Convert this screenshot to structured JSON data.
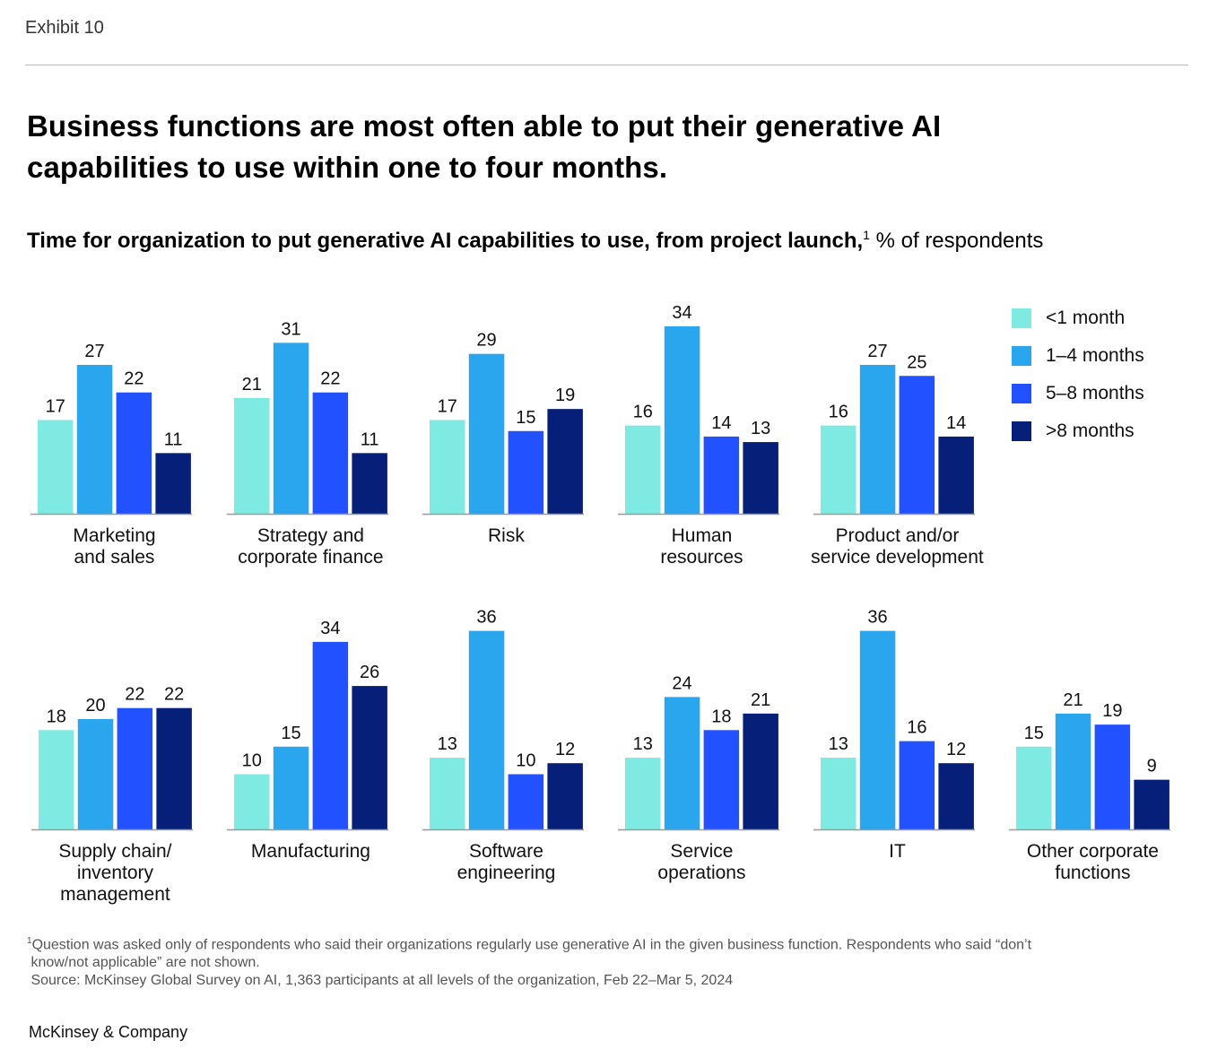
{
  "exhibit": "Exhibit 10",
  "title": "Business functions are most often able to put their generative AI capabilities to use within one to four months.",
  "subtitle_bold": "Time for organization to put generative AI capabilities to use, from project launch,",
  "subtitle_sup": "1",
  "subtitle_rest": " % of respondents",
  "colors": [
    "#7feae2",
    "#2aa6ee",
    "#2251ff",
    "#061f79"
  ],
  "footnote": {
    "marker": "1",
    "line1": "Question was asked only of respondents who said their organizations regularly use generative AI in the given business function. Respondents who said “don’t",
    "line2": " know/not applicable” are not shown.",
    "source": " Source: McKinsey Global Survey on AI, 1,363 participants at all levels of the organization, Feb 22–Mar 5, 2024"
  },
  "company": "McKinsey & Company",
  "chart_data": {
    "type": "bar",
    "series_names": [
      "<1 month",
      "1–4 months",
      "5–8 months",
      ">8 months"
    ],
    "panels": [
      {
        "label": [
          "Marketing",
          "and sales"
        ],
        "values": [
          17,
          27,
          22,
          11
        ]
      },
      {
        "label": [
          "Strategy and",
          "corporate finance"
        ],
        "values": [
          21,
          31,
          22,
          11
        ]
      },
      {
        "label": [
          "Risk"
        ],
        "values": [
          17,
          29,
          15,
          19
        ]
      },
      {
        "label": [
          "Human",
          "resources"
        ],
        "values": [
          16,
          34,
          14,
          13
        ]
      },
      {
        "label": [
          "Product and/or",
          "service development"
        ],
        "values": [
          16,
          27,
          25,
          14
        ]
      },
      {
        "label": [
          "Supply chain/",
          "inventory",
          "management"
        ],
        "values": [
          18,
          20,
          22,
          22
        ]
      },
      {
        "label": [
          "Manufacturing"
        ],
        "values": [
          10,
          15,
          34,
          26
        ]
      },
      {
        "label": [
          "Software",
          "engineering"
        ],
        "values": [
          13,
          36,
          10,
          12
        ]
      },
      {
        "label": [
          "Service",
          "operations"
        ],
        "values": [
          13,
          24,
          18,
          21
        ]
      },
      {
        "label": [
          "IT"
        ],
        "values": [
          13,
          36,
          16,
          12
        ]
      },
      {
        "label": [
          "Other corporate",
          "functions"
        ],
        "values": [
          15,
          21,
          19,
          9
        ]
      }
    ]
  }
}
